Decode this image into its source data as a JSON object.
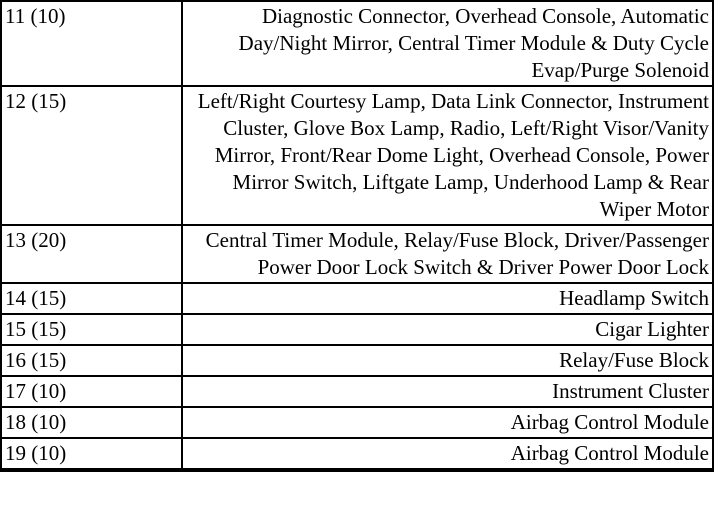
{
  "document": {
    "kind": "fuse-specification-table",
    "columns": [
      "fuse_number_and_amperage",
      "protected_circuits"
    ],
    "rows": [
      {
        "fuse": "11 (10)",
        "desc": "Diagnostic Connector, Overhead Console, Automatic Day/Night Mirror, Central Timer Module & Duty Cycle Evap/Purge Solenoid"
      },
      {
        "fuse": "12 (15)",
        "desc": "Left/Right Courtesy Lamp, Data Link Connector, Instrument Cluster, Glove Box Lamp, Radio, Left/Right Visor/Vanity Mirror, Front/Rear Dome Light, Overhead Console, Power Mirror Switch, Liftgate Lamp, Underhood Lamp & Rear Wiper Motor"
      },
      {
        "fuse": "13 (20)",
        "desc": "Central Timer Module, Relay/Fuse Block, Driver/Passenger Power Door Lock Switch & Driver Power Door Lock"
      },
      {
        "fuse": "14 (15)",
        "desc": "Headlamp Switch"
      },
      {
        "fuse": "15 (15)",
        "desc": "Cigar Lighter"
      },
      {
        "fuse": "16 (15)",
        "desc": "Relay/Fuse Block"
      },
      {
        "fuse": "17 (10)",
        "desc": "Instrument Cluster"
      },
      {
        "fuse": "18 (10)",
        "desc": "Airbag Control Module"
      },
      {
        "fuse": "19 (10)",
        "desc": "Airbag Control Module"
      }
    ]
  },
  "colors": {
    "border": "#000000",
    "background": "#ffffff",
    "text": "#000000"
  }
}
